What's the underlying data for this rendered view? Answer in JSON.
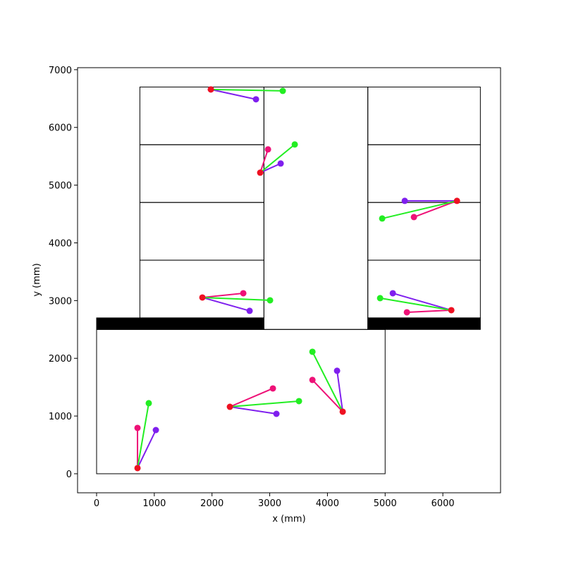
{
  "chart_data": {
    "type": "scatter",
    "x_label": "x (mm)",
    "y_label": "y (mm)",
    "xlim": [
      -330,
      7000
    ],
    "ylim": [
      -330,
      7035
    ],
    "xticks": [
      0,
      1000,
      2000,
      3000,
      4000,
      5000,
      6000
    ],
    "yticks": [
      0,
      1000,
      2000,
      3000,
      4000,
      5000,
      6000,
      7000
    ],
    "rooms": [
      [
        0,
        0,
        5000,
        2500
      ],
      [
        750,
        2700,
        2900,
        3700
      ],
      [
        750,
        3700,
        2900,
        4700
      ],
      [
        750,
        4700,
        2900,
        5700
      ],
      [
        750,
        5700,
        2900,
        6700
      ],
      [
        2900,
        2500,
        4700,
        6700
      ],
      [
        4700,
        2700,
        6650,
        3700
      ],
      [
        4700,
        3700,
        6650,
        4700
      ],
      [
        4700,
        4700,
        6650,
        5700
      ],
      [
        4700,
        5700,
        6650,
        6700
      ]
    ],
    "walls": [
      [
        0,
        2500,
        2900,
        2700
      ],
      [
        4700,
        2500,
        6650,
        2700
      ]
    ],
    "room_color": "#000000",
    "wall_color": "#000000",
    "series": [
      {
        "color": "#ee1122",
        "x": [
          709,
          2310,
          4265,
          1833,
          2835,
          1980,
          6245,
          6147
        ],
        "y": [
          98,
          1160,
          1075,
          3054,
          5216,
          6658,
          4728,
          2834
        ]
      },
      {
        "color": "#22ee22",
        "x": [
          904,
          3507,
          3740,
          3006,
          3434,
          3226,
          4949,
          4913
        ],
        "y": [
          1222,
          1258,
          2113,
          3005,
          5705,
          6633,
          4422,
          3042
        ]
      },
      {
        "color": "#7f1fee",
        "x": [
          1027,
          3116,
          4167,
          2652,
          3190,
          2762,
          5340,
          5133
        ],
        "y": [
          757,
          1038,
          1784,
          2822,
          5375,
          6487,
          4728,
          3127
        ]
      },
      {
        "color": "#ee1177",
        "x": [
          709,
          3055,
          3740,
          2542,
          2970,
          1980,
          5499,
          5377
        ],
        "y": [
          794,
          1478,
          1625,
          3127,
          5619,
          6658,
          4447,
          2797
        ]
      }
    ]
  }
}
